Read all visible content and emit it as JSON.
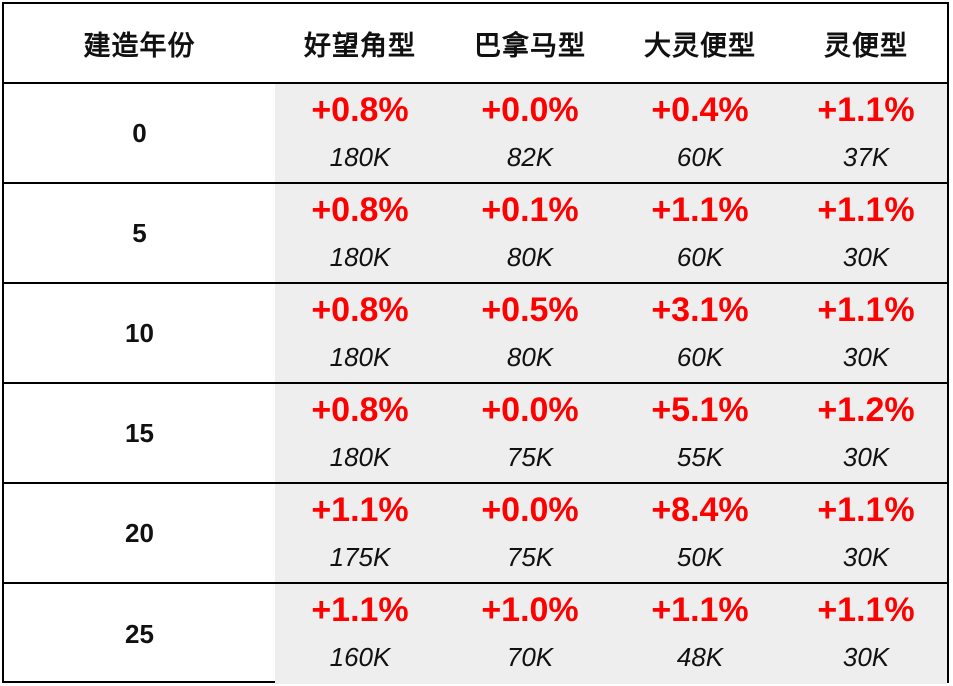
{
  "chart_data": {
    "type": "table",
    "columns": [
      "建造年份",
      "好望角型",
      "巴拿马型",
      "大灵便型",
      "灵便型"
    ],
    "rows": [
      {
        "year": "0",
        "cells": [
          {
            "pct": "+0.8%",
            "val": "180K"
          },
          {
            "pct": "+0.0%",
            "val": "82K"
          },
          {
            "pct": "+0.4%",
            "val": "60K"
          },
          {
            "pct": "+1.1%",
            "val": "37K"
          }
        ]
      },
      {
        "year": "5",
        "cells": [
          {
            "pct": "+0.8%",
            "val": "180K"
          },
          {
            "pct": "+0.1%",
            "val": "80K"
          },
          {
            "pct": "+1.1%",
            "val": "60K"
          },
          {
            "pct": "+1.1%",
            "val": "30K"
          }
        ]
      },
      {
        "year": "10",
        "cells": [
          {
            "pct": "+0.8%",
            "val": "180K"
          },
          {
            "pct": "+0.5%",
            "val": "80K"
          },
          {
            "pct": "+3.1%",
            "val": "60K"
          },
          {
            "pct": "+1.1%",
            "val": "30K"
          }
        ]
      },
      {
        "year": "15",
        "cells": [
          {
            "pct": "+0.8%",
            "val": "180K"
          },
          {
            "pct": "+0.0%",
            "val": "75K"
          },
          {
            "pct": "+5.1%",
            "val": "55K"
          },
          {
            "pct": "+1.2%",
            "val": "30K"
          }
        ]
      },
      {
        "year": "20",
        "cells": [
          {
            "pct": "+1.1%",
            "val": "175K"
          },
          {
            "pct": "+0.0%",
            "val": "75K"
          },
          {
            "pct": "+8.4%",
            "val": "50K"
          },
          {
            "pct": "+1.1%",
            "val": "30K"
          }
        ]
      },
      {
        "year": "25",
        "cells": [
          {
            "pct": "+1.1%",
            "val": "160K"
          },
          {
            "pct": "+1.0%",
            "val": "70K"
          },
          {
            "pct": "+1.1%",
            "val": "48K"
          },
          {
            "pct": "+1.1%",
            "val": "30K"
          }
        ]
      }
    ],
    "colors": {
      "change_text": "#ff0000",
      "value_text": "#111111",
      "data_shade": "#eeeeee",
      "border": "#000000"
    }
  }
}
